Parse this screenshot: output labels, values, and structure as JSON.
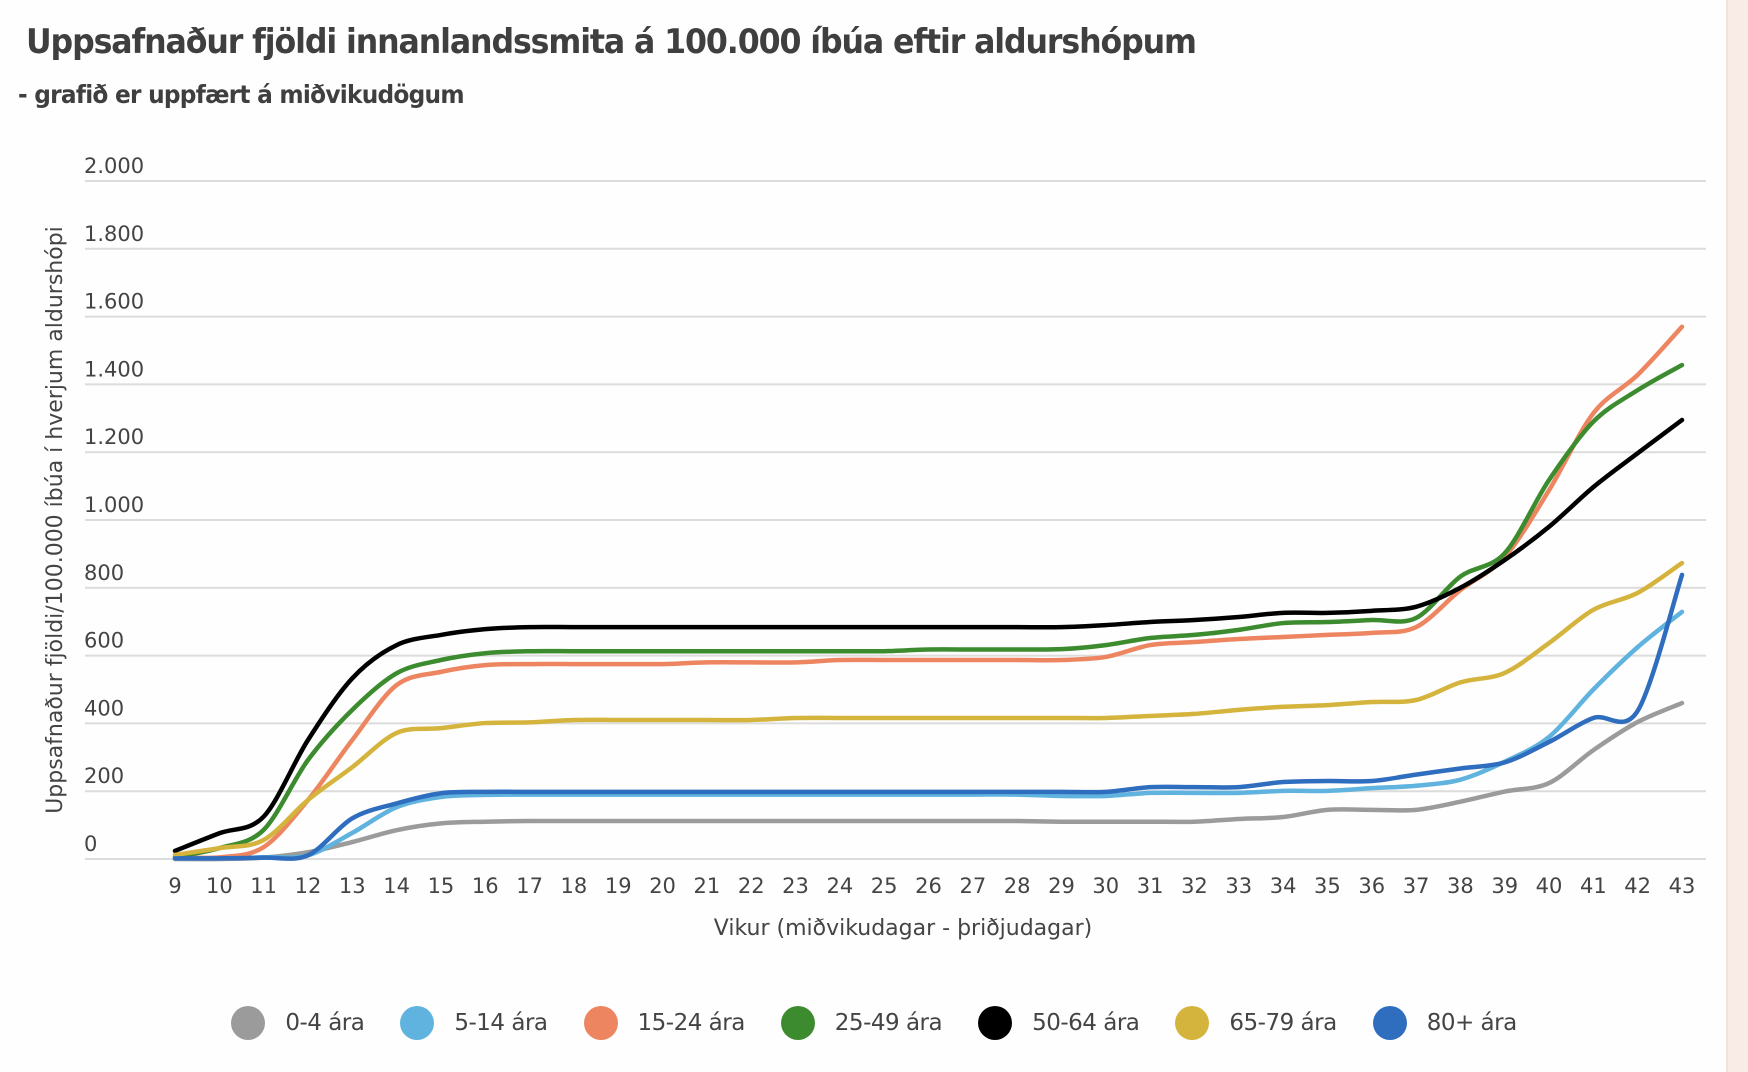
{
  "header": {
    "title": "Uppsafnaður fjöldi innanlandssmita á 100.000 íbúa eftir aldurshópum",
    "subtitle": "- grafið er uppfært á miðvikudögum"
  },
  "chart_data": {
    "type": "line",
    "title": "Uppsafnaður fjöldi innanlandssmita á 100.000 íbúa eftir aldurshópum",
    "subtitle": "- grafið er uppfært á miðvikudögum",
    "xlabel": "Vikur (miðvikudagar - þriðjudagar)",
    "ylabel": "Uppsafnaður fjöldi/100.000 íbúa í hverjum aldurshópi",
    "x": [
      9,
      10,
      11,
      12,
      13,
      14,
      15,
      16,
      17,
      18,
      19,
      20,
      21,
      22,
      23,
      24,
      25,
      26,
      27,
      28,
      29,
      30,
      31,
      32,
      33,
      34,
      35,
      36,
      37,
      38,
      39,
      40,
      41,
      42,
      43
    ],
    "ylim": [
      0,
      2000
    ],
    "yticks": [
      0,
      200,
      400,
      600,
      800,
      1000,
      1200,
      1400,
      1600,
      1800,
      2000
    ],
    "ytick_labels": [
      "0",
      "200",
      "400",
      "600",
      "800",
      "1.000",
      "1.200",
      "1.400",
      "1.600",
      "1.800",
      "2.000"
    ],
    "grid": "horizontal",
    "legend_position": "bottom",
    "series": [
      {
        "name": "0-4 ára",
        "color": "#9b9b9b",
        "values": [
          0,
          0,
          4,
          20,
          50,
          85,
          105,
          110,
          112,
          112,
          112,
          112,
          112,
          112,
          112,
          112,
          112,
          112,
          112,
          112,
          110,
          110,
          110,
          110,
          118,
          124,
          145,
          145,
          145,
          169,
          199,
          224,
          321,
          404,
          460
        ]
      },
      {
        "name": "5-14 ára",
        "color": "#5fb3de",
        "values": [
          2,
          2,
          5,
          11,
          77,
          153,
          183,
          189,
          190,
          190,
          190,
          190,
          190,
          190,
          190,
          190,
          190,
          190,
          190,
          190,
          186,
          186,
          195,
          195,
          195,
          201,
          201,
          209,
          216,
          234,
          287,
          360,
          500,
          625,
          729
        ]
      },
      {
        "name": "15-24 ára",
        "color": "#ec8560",
        "values": [
          6,
          5,
          35,
          174,
          351,
          513,
          552,
          572,
          575,
          575,
          575,
          575,
          580,
          580,
          580,
          587,
          587,
          587,
          587,
          587,
          587,
          596,
          631,
          640,
          649,
          655,
          661,
          667,
          684,
          793,
          891,
          1088,
          1315,
          1428,
          1570
        ]
      },
      {
        "name": "25-49 ára",
        "color": "#3d8b2f",
        "values": [
          6,
          32,
          86,
          292,
          440,
          548,
          587,
          607,
          613,
          613,
          613,
          613,
          613,
          613,
          613,
          613,
          613,
          618,
          618,
          618,
          619,
          631,
          652,
          661,
          676,
          696,
          699,
          705,
          711,
          833,
          902,
          1118,
          1290,
          1383,
          1457
        ]
      },
      {
        "name": "50-64 ára",
        "color": "#000000",
        "values": [
          24,
          76,
          125,
          351,
          533,
          631,
          661,
          678,
          684,
          684,
          684,
          684,
          684,
          684,
          684,
          684,
          684,
          684,
          684,
          684,
          684,
          690,
          699,
          705,
          714,
          726,
          726,
          732,
          744,
          800,
          882,
          980,
          1097,
          1197,
          1295
        ]
      },
      {
        "name": "65-79 ára",
        "color": "#d4b43c",
        "values": [
          12,
          32,
          56,
          174,
          271,
          372,
          386,
          401,
          403,
          410,
          410,
          410,
          410,
          410,
          416,
          416,
          416,
          416,
          416,
          416,
          416,
          416,
          422,
          428,
          440,
          449,
          454,
          463,
          469,
          521,
          549,
          637,
          735,
          785,
          873
        ]
      },
      {
        "name": "80+ ára",
        "color": "#2f6dbf",
        "values": [
          2,
          2,
          4,
          11,
          120,
          164,
          194,
          198,
          198,
          198,
          198,
          198,
          198,
          198,
          198,
          198,
          198,
          198,
          198,
          198,
          198,
          198,
          212,
          212,
          212,
          227,
          230,
          230,
          249,
          267,
          285,
          345,
          416,
          437,
          838
        ]
      }
    ]
  }
}
